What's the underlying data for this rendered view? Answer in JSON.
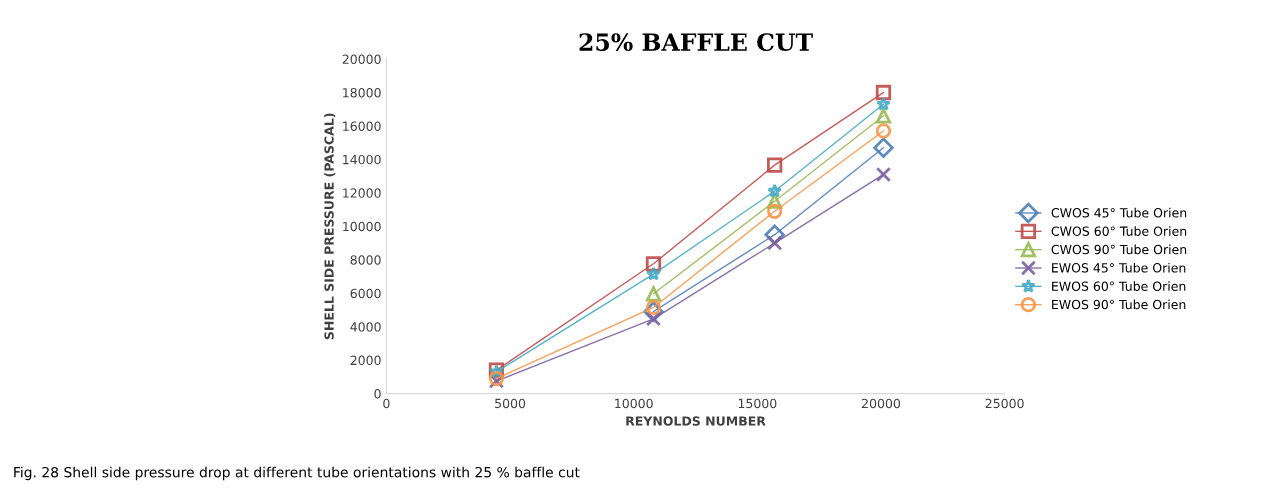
{
  "chart_data": {
    "type": "line",
    "title": "25% BAFFLE CUT",
    "xlabel": "REYNOLDS NUMBER",
    "ylabel": "SHELL SIDE PRESSURE (PASCAL)",
    "x": [
      4450,
      10800,
      15700,
      20100
    ],
    "series": [
      {
        "name": "CWOS 45° Tube Orien",
        "color": "#4a7ebb",
        "marker": "diamond",
        "values": [
          null,
          4900,
          9500,
          14700
        ]
      },
      {
        "name": "CWOS 60° Tube Orien",
        "color": "#be4b48",
        "marker": "square",
        "values": [
          1400,
          7760,
          13660,
          18000
        ]
      },
      {
        "name": "CWOS 90° Tube Orien",
        "color": "#98b954",
        "marker": "triangle",
        "values": [
          null,
          5960,
          11500,
          16600
        ]
      },
      {
        "name": "EWOS 45° Tube Orien",
        "color": "#7d5fa0",
        "marker": "cross",
        "values": [
          750,
          4470,
          9000,
          13100
        ]
      },
      {
        "name": "EWOS 60° Tube Orien",
        "color": "#46aac5",
        "marker": "star",
        "values": [
          1300,
          7140,
          12100,
          17300
        ]
      },
      {
        "name": "EWOS 90° Tube Orien",
        "color": "#f79646",
        "marker": "circle",
        "values": [
          900,
          5150,
          10900,
          15700
        ]
      }
    ],
    "xlim": [
      0,
      25000
    ],
    "xticks": [
      0,
      5000,
      10000,
      15000,
      20000,
      25000
    ],
    "ylim": [
      0,
      20000
    ],
    "yticks": [
      0,
      2000,
      4000,
      6000,
      8000,
      10000,
      12000,
      14000,
      16000,
      18000,
      20000
    ],
    "grid": false,
    "legend": "right",
    "annotations": [
      "Fig. 28 Shell side pressure drop at different tube orientations with 25 % baffle cut"
    ]
  }
}
